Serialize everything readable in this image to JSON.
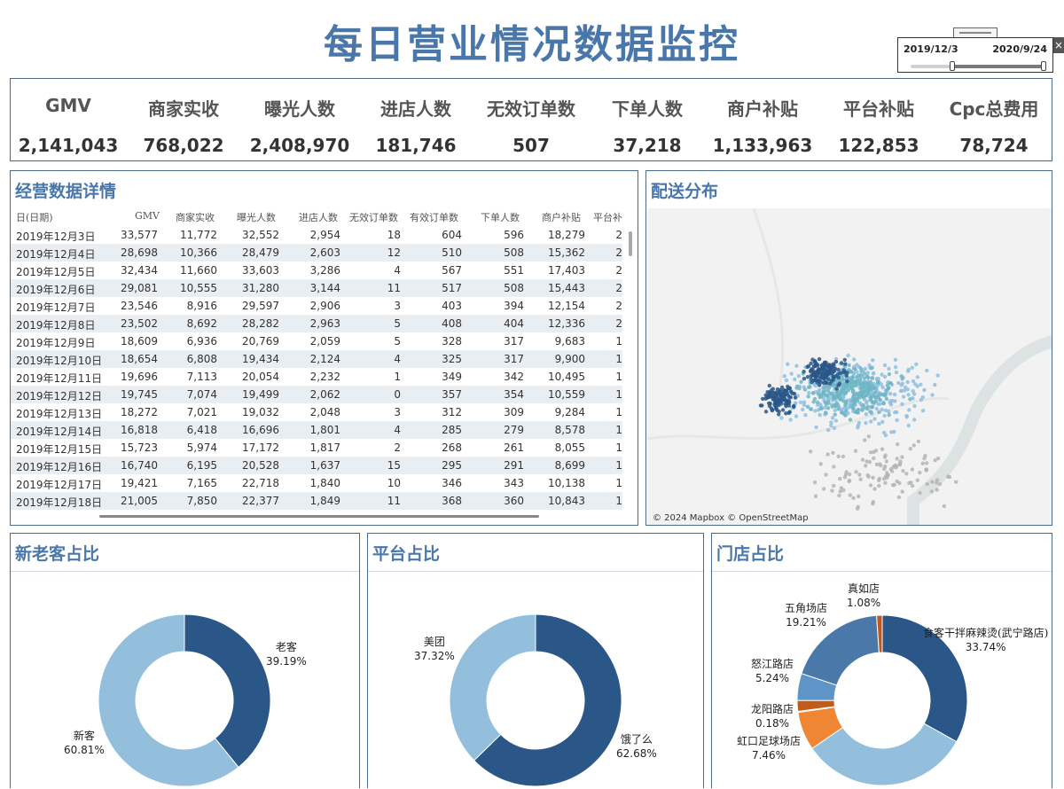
{
  "title": "每日营业情况数据监控",
  "date_filter": {
    "from": "2019/12/3",
    "to": "2020/9/24"
  },
  "close_icon": "×",
  "kpis": [
    {
      "label": "GMV",
      "value": "2,141,043"
    },
    {
      "label": "商家实收",
      "value": "768,022"
    },
    {
      "label": "曝光人数",
      "value": "2,408,970"
    },
    {
      "label": "进店人数",
      "value": "181,746"
    },
    {
      "label": "无效订单数",
      "value": "507"
    },
    {
      "label": "下单人数",
      "value": "37,218"
    },
    {
      "label": "商户补贴",
      "value": "1,133,963"
    },
    {
      "label": "平台补贴",
      "value": "122,853"
    },
    {
      "label": "Cpc总费用",
      "value": "78,724"
    }
  ],
  "detail": {
    "title": "经营数据详情",
    "columns": [
      "日(日期)",
      "GMV",
      "商家实收",
      "曝光人数",
      "进店人数",
      "无效订单数",
      "有效订单数",
      "下单人数",
      "商户补贴",
      "平台补"
    ],
    "rows": [
      [
        "2019年12月3日",
        "33,577",
        "11,772",
        "32,552",
        "2,954",
        "18",
        "604",
        "596",
        "18,279",
        "2"
      ],
      [
        "2019年12月4日",
        "28,698",
        "10,366",
        "28,479",
        "2,603",
        "12",
        "510",
        "508",
        "15,362",
        "2"
      ],
      [
        "2019年12月5日",
        "32,434",
        "11,660",
        "33,603",
        "3,286",
        "4",
        "567",
        "551",
        "17,403",
        "2"
      ],
      [
        "2019年12月6日",
        "29,081",
        "10,555",
        "31,280",
        "3,144",
        "11",
        "517",
        "508",
        "15,443",
        "2"
      ],
      [
        "2019年12月7日",
        "23,546",
        "8,916",
        "29,597",
        "2,906",
        "3",
        "403",
        "394",
        "12,154",
        "2"
      ],
      [
        "2019年12月8日",
        "23,502",
        "8,692",
        "28,282",
        "2,963",
        "5",
        "408",
        "404",
        "12,336",
        "2"
      ],
      [
        "2019年12月9日",
        "18,609",
        "6,936",
        "20,769",
        "2,059",
        "5",
        "328",
        "317",
        "9,683",
        "1"
      ],
      [
        "2019年12月10日",
        "18,654",
        "6,808",
        "19,434",
        "2,124",
        "4",
        "325",
        "317",
        "9,900",
        "1"
      ],
      [
        "2019年12月11日",
        "19,696",
        "7,113",
        "20,054",
        "2,232",
        "1",
        "349",
        "342",
        "10,495",
        "1"
      ],
      [
        "2019年12月12日",
        "19,745",
        "7,074",
        "19,499",
        "2,062",
        "0",
        "357",
        "354",
        "10,559",
        "1"
      ],
      [
        "2019年12月13日",
        "18,272",
        "7,021",
        "19,032",
        "2,048",
        "3",
        "312",
        "309",
        "9,284",
        "1"
      ],
      [
        "2019年12月14日",
        "16,818",
        "6,418",
        "16,696",
        "1,801",
        "4",
        "285",
        "279",
        "8,578",
        "1"
      ],
      [
        "2019年12月15日",
        "15,723",
        "5,974",
        "17,172",
        "1,817",
        "2",
        "268",
        "261",
        "8,055",
        "1"
      ],
      [
        "2019年12月16日",
        "16,740",
        "6,195",
        "20,528",
        "1,637",
        "15",
        "295",
        "291",
        "8,699",
        "1"
      ],
      [
        "2019年12月17日",
        "19,421",
        "7,165",
        "22,718",
        "1,840",
        "10",
        "346",
        "343",
        "10,138",
        "1"
      ],
      [
        "2019年12月18日",
        "21,005",
        "7,850",
        "22,377",
        "1,849",
        "11",
        "368",
        "360",
        "10,843",
        "1"
      ]
    ]
  },
  "map": {
    "title": "配送分布",
    "attribution": "© 2024 Mapbox © OpenStreetMap",
    "colors": [
      "#2a5788",
      "#6fb6c4",
      "#8fc0e0",
      "#b5b5b5"
    ]
  },
  "donuts": [
    {
      "title": "新老客占比",
      "slices": [
        {
          "name": "老客",
          "pct": "39.19%",
          "value": 39.19,
          "color": "#2a5788"
        },
        {
          "name": "新客",
          "pct": "60.81%",
          "value": 60.81,
          "color": "#93bfdd"
        }
      ]
    },
    {
      "title": "平台占比",
      "slices": [
        {
          "name": "饿了么",
          "pct": "62.68%",
          "value": 62.68,
          "color": "#2a5788"
        },
        {
          "name": "美团",
          "pct": "37.32%",
          "value": 37.32,
          "color": "#93bfdd"
        }
      ]
    },
    {
      "title": "门店占比",
      "slices": [
        {
          "name": "食客干拌麻辣烫(武宁路店)",
          "pct": "33.74%",
          "value": 33.74,
          "color": "#2a5788"
        },
        {
          "name": "",
          "pct": "",
          "value": 33.0,
          "color": "#93bfdd"
        },
        {
          "name": "虹口足球场店",
          "pct": "7.46%",
          "value": 7.46,
          "color": "#ef8633"
        },
        {
          "name": "龙阳路店",
          "pct": "0.18%",
          "value": 0.18,
          "color": "#f4a04f"
        },
        {
          "name": "",
          "pct": "",
          "value": 2.1,
          "color": "#c25a1c"
        },
        {
          "name": "怒江路店",
          "pct": "5.24%",
          "value": 5.24,
          "color": "#5f94c7"
        },
        {
          "name": "五角场店",
          "pct": "19.21%",
          "value": 19.21,
          "color": "#4a78a8"
        },
        {
          "name": "真如店",
          "pct": "1.08%",
          "value": 1.08,
          "color": "#c2561e"
        }
      ]
    }
  ]
}
